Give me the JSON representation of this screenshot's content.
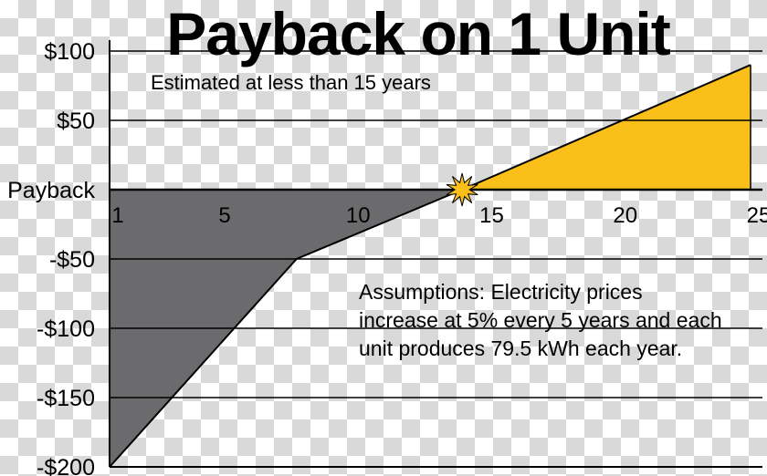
{
  "chart_data": {
    "type": "area",
    "title": "Payback on 1 Unit",
    "subtitle": "Estimated at less than 15 years",
    "annotation_lines": [
      "Assumptions: Electricity prices",
      "increase at 5% every 5 years and each",
      "unit produces 79.5 kWh each year."
    ],
    "xlim": [
      1,
      25
    ],
    "ylim": [
      -200,
      100
    ],
    "x_ticks": [
      {
        "value": 1,
        "label": "1"
      },
      {
        "value": 5,
        "label": "5"
      },
      {
        "value": 10,
        "label": "10"
      },
      {
        "value": 15,
        "label": "15"
      },
      {
        "value": 20,
        "label": "20"
      },
      {
        "value": 25,
        "label": "25"
      }
    ],
    "y_ticks": [
      {
        "value": 100,
        "label": "$100"
      },
      {
        "value": 50,
        "label": "$50"
      },
      {
        "value": 0,
        "label": "Payback"
      },
      {
        "value": -50,
        "label": "-$50"
      },
      {
        "value": -100,
        "label": "-$100"
      },
      {
        "value": -150,
        "label": "-$150"
      },
      {
        "value": -200,
        "label": "-$200"
      }
    ],
    "x": [
      1,
      8,
      14.2,
      25
    ],
    "y": [
      -200,
      -50,
      0,
      90
    ],
    "payback_year": 14.2,
    "grid": true,
    "colors": {
      "negative_area": "#6b6b6d",
      "positive_area": "#fbbf1a",
      "payback_marker": "#fbbf1a"
    }
  }
}
